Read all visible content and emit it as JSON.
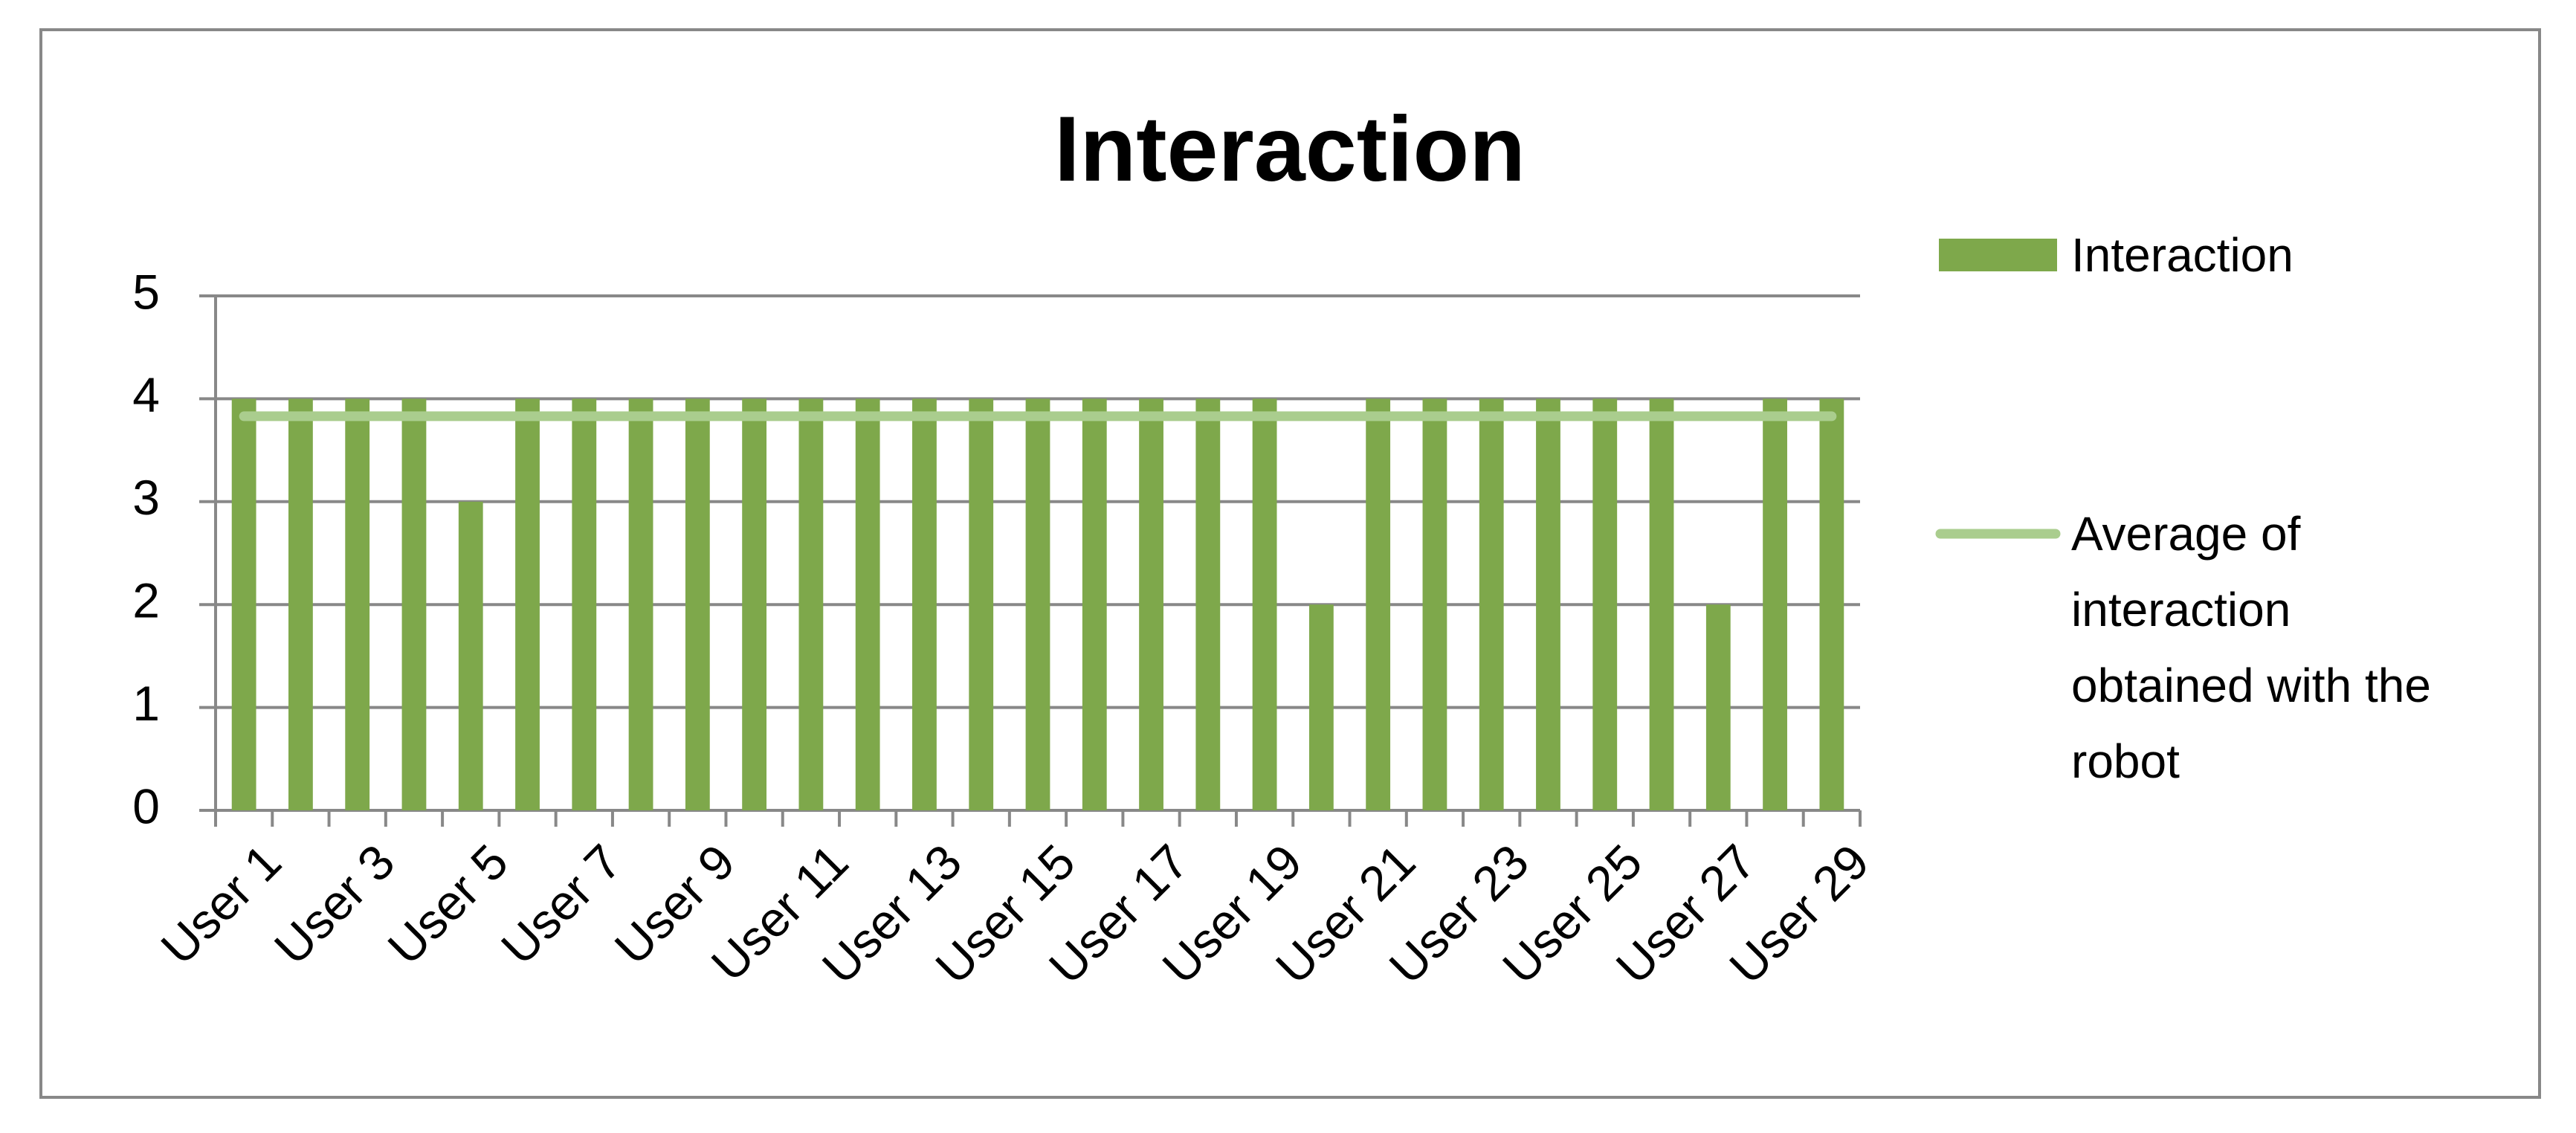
{
  "chart_data": {
    "type": "bar",
    "title": "Interaction",
    "categories": [
      "User 1",
      null,
      "User 3",
      null,
      "User 5",
      null,
      "User 7",
      null,
      "User 9",
      null,
      "User 11",
      null,
      "User 13",
      null,
      "User 15",
      null,
      "User 17",
      null,
      "User 19",
      null,
      "User 21",
      null,
      "User 23",
      null,
      "User 25",
      null,
      "User 27",
      null,
      "User 29"
    ],
    "series": [
      {
        "name": "Interaction",
        "type": "bar",
        "color": "#7ea84b",
        "values": [
          4,
          4,
          4,
          4,
          3,
          4,
          4,
          4,
          4,
          4,
          4,
          4,
          4,
          4,
          4,
          4,
          4,
          4,
          4,
          2,
          4,
          4,
          4,
          4,
          4,
          4,
          2,
          4,
          4
        ]
      },
      {
        "name": "Average of interaction obtained with the robot",
        "type": "line",
        "color": "#aacd8e",
        "values": [
          3.83,
          3.83,
          3.83,
          3.83,
          3.83,
          3.83,
          3.83,
          3.83,
          3.83,
          3.83,
          3.83,
          3.83,
          3.83,
          3.83,
          3.83,
          3.83,
          3.83,
          3.83,
          3.83,
          3.83,
          3.83,
          3.83,
          3.83,
          3.83,
          3.83,
          3.83,
          3.83,
          3.83,
          3.83
        ]
      }
    ],
    "ylim": [
      0,
      5
    ],
    "yticks": [
      0,
      1,
      2,
      3,
      4,
      5
    ],
    "grid": true,
    "legend": "right"
  }
}
